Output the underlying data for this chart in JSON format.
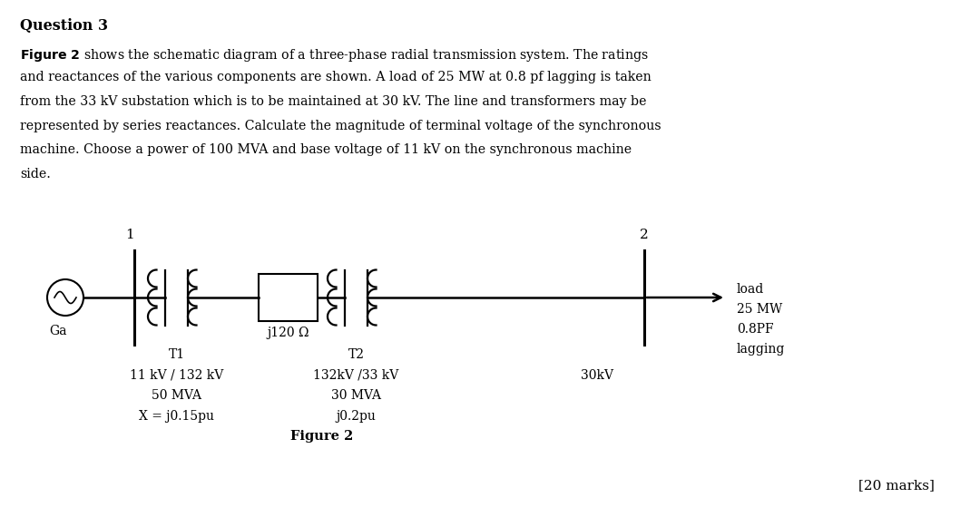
{
  "title": "Question 3",
  "bg_color": "#ffffff",
  "text_color": "#000000",
  "para_lines": [
    "shows the schematic diagram of a three-phase radial transmission system. The ratings",
    "and reactances of the various components are shown. A load of 25 MW at 0.8 pf lagging is taken",
    "from the 33 kV substation which is to be maintained at 30 kV. The line and transformers may be",
    "represented by series reactances. Calculate the magnitude of terminal voltage of the synchronous",
    "machine. Choose a power of 100 MVA and base voltage of 11 kV on the synchronous machine",
    "side."
  ],
  "figure_label": "Figure 2",
  "marks_label": "[20 marks]",
  "gen_label": "Ga",
  "bus1_label": "1",
  "bus2_label": "2",
  "T1_label": "T1",
  "T1_spec1": "11 kV / 132 kV",
  "T1_spec2": "50 MVA",
  "T1_spec3": "X = j0.15pu",
  "line_label": "j120 Ω",
  "T2_label": "T2",
  "T2_spec1": "132kV /33 kV",
  "T2_spec2": "30 MVA",
  "T2_spec3": "j0.2pu",
  "bus2_voltage": "30kV",
  "load_label": "load",
  "load_spec1": "25 MW",
  "load_spec2": "0.8PF",
  "load_spec3": "lagging"
}
